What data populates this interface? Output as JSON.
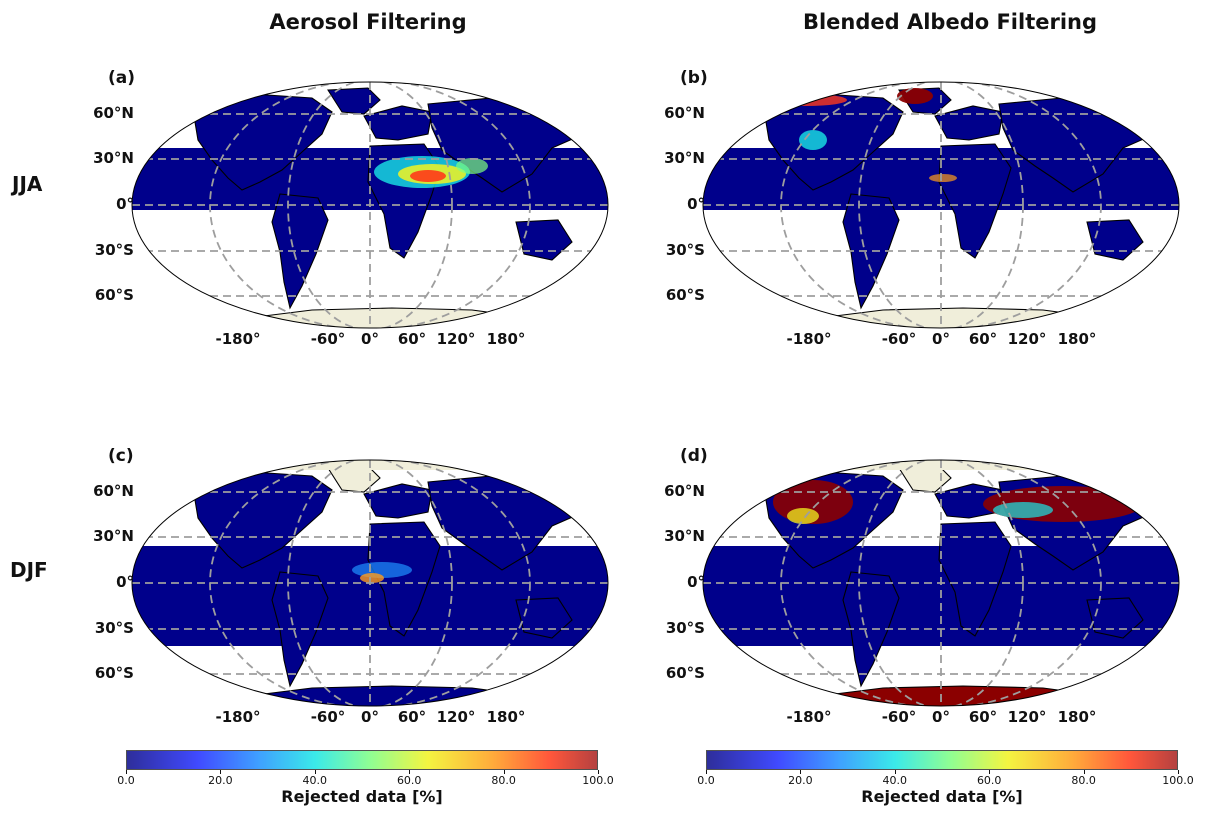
{
  "columns": [
    {
      "title": "Aerosol Filtering"
    },
    {
      "title": "Blended Albedo Filtering"
    }
  ],
  "rows": [
    {
      "label": "JJA"
    },
    {
      "label": "DJF"
    }
  ],
  "panels": [
    {
      "label": "(a)",
      "row": 0,
      "col": 0,
      "theme": "aerosol-jja"
    },
    {
      "label": "(b)",
      "row": 0,
      "col": 1,
      "theme": "albedo-jja"
    },
    {
      "label": "(c)",
      "row": 1,
      "col": 0,
      "theme": "aerosol-djf"
    },
    {
      "label": "(d)",
      "row": 1,
      "col": 1,
      "theme": "albedo-djf"
    }
  ],
  "lat_labels": [
    "60°N",
    "30°N",
    "0°",
    "30°S",
    "60°S"
  ],
  "lon_labels": [
    "-180°",
    "-60°",
    "0°",
    "60°",
    "120°",
    "180°"
  ],
  "colorbar": {
    "label": "Rejected data [%]",
    "ticks": [
      "0.0",
      "20.0",
      "40.0",
      "60.0",
      "80.0",
      "100.0"
    ],
    "range": [
      0,
      100
    ],
    "colormap": "jet",
    "colors": [
      "#0a0a8a",
      "#1f2bff",
      "#1e90ff",
      "#19e6e6",
      "#7fff7f",
      "#f3f320",
      "#ff9c1a",
      "#ff3a1a",
      "#a8201f"
    ]
  },
  "colors": {
    "ocean_data": "#00008b",
    "land_fill": "#f0eeda",
    "gridline": "#9e9e9e",
    "high_reject": "#8b0000"
  }
}
